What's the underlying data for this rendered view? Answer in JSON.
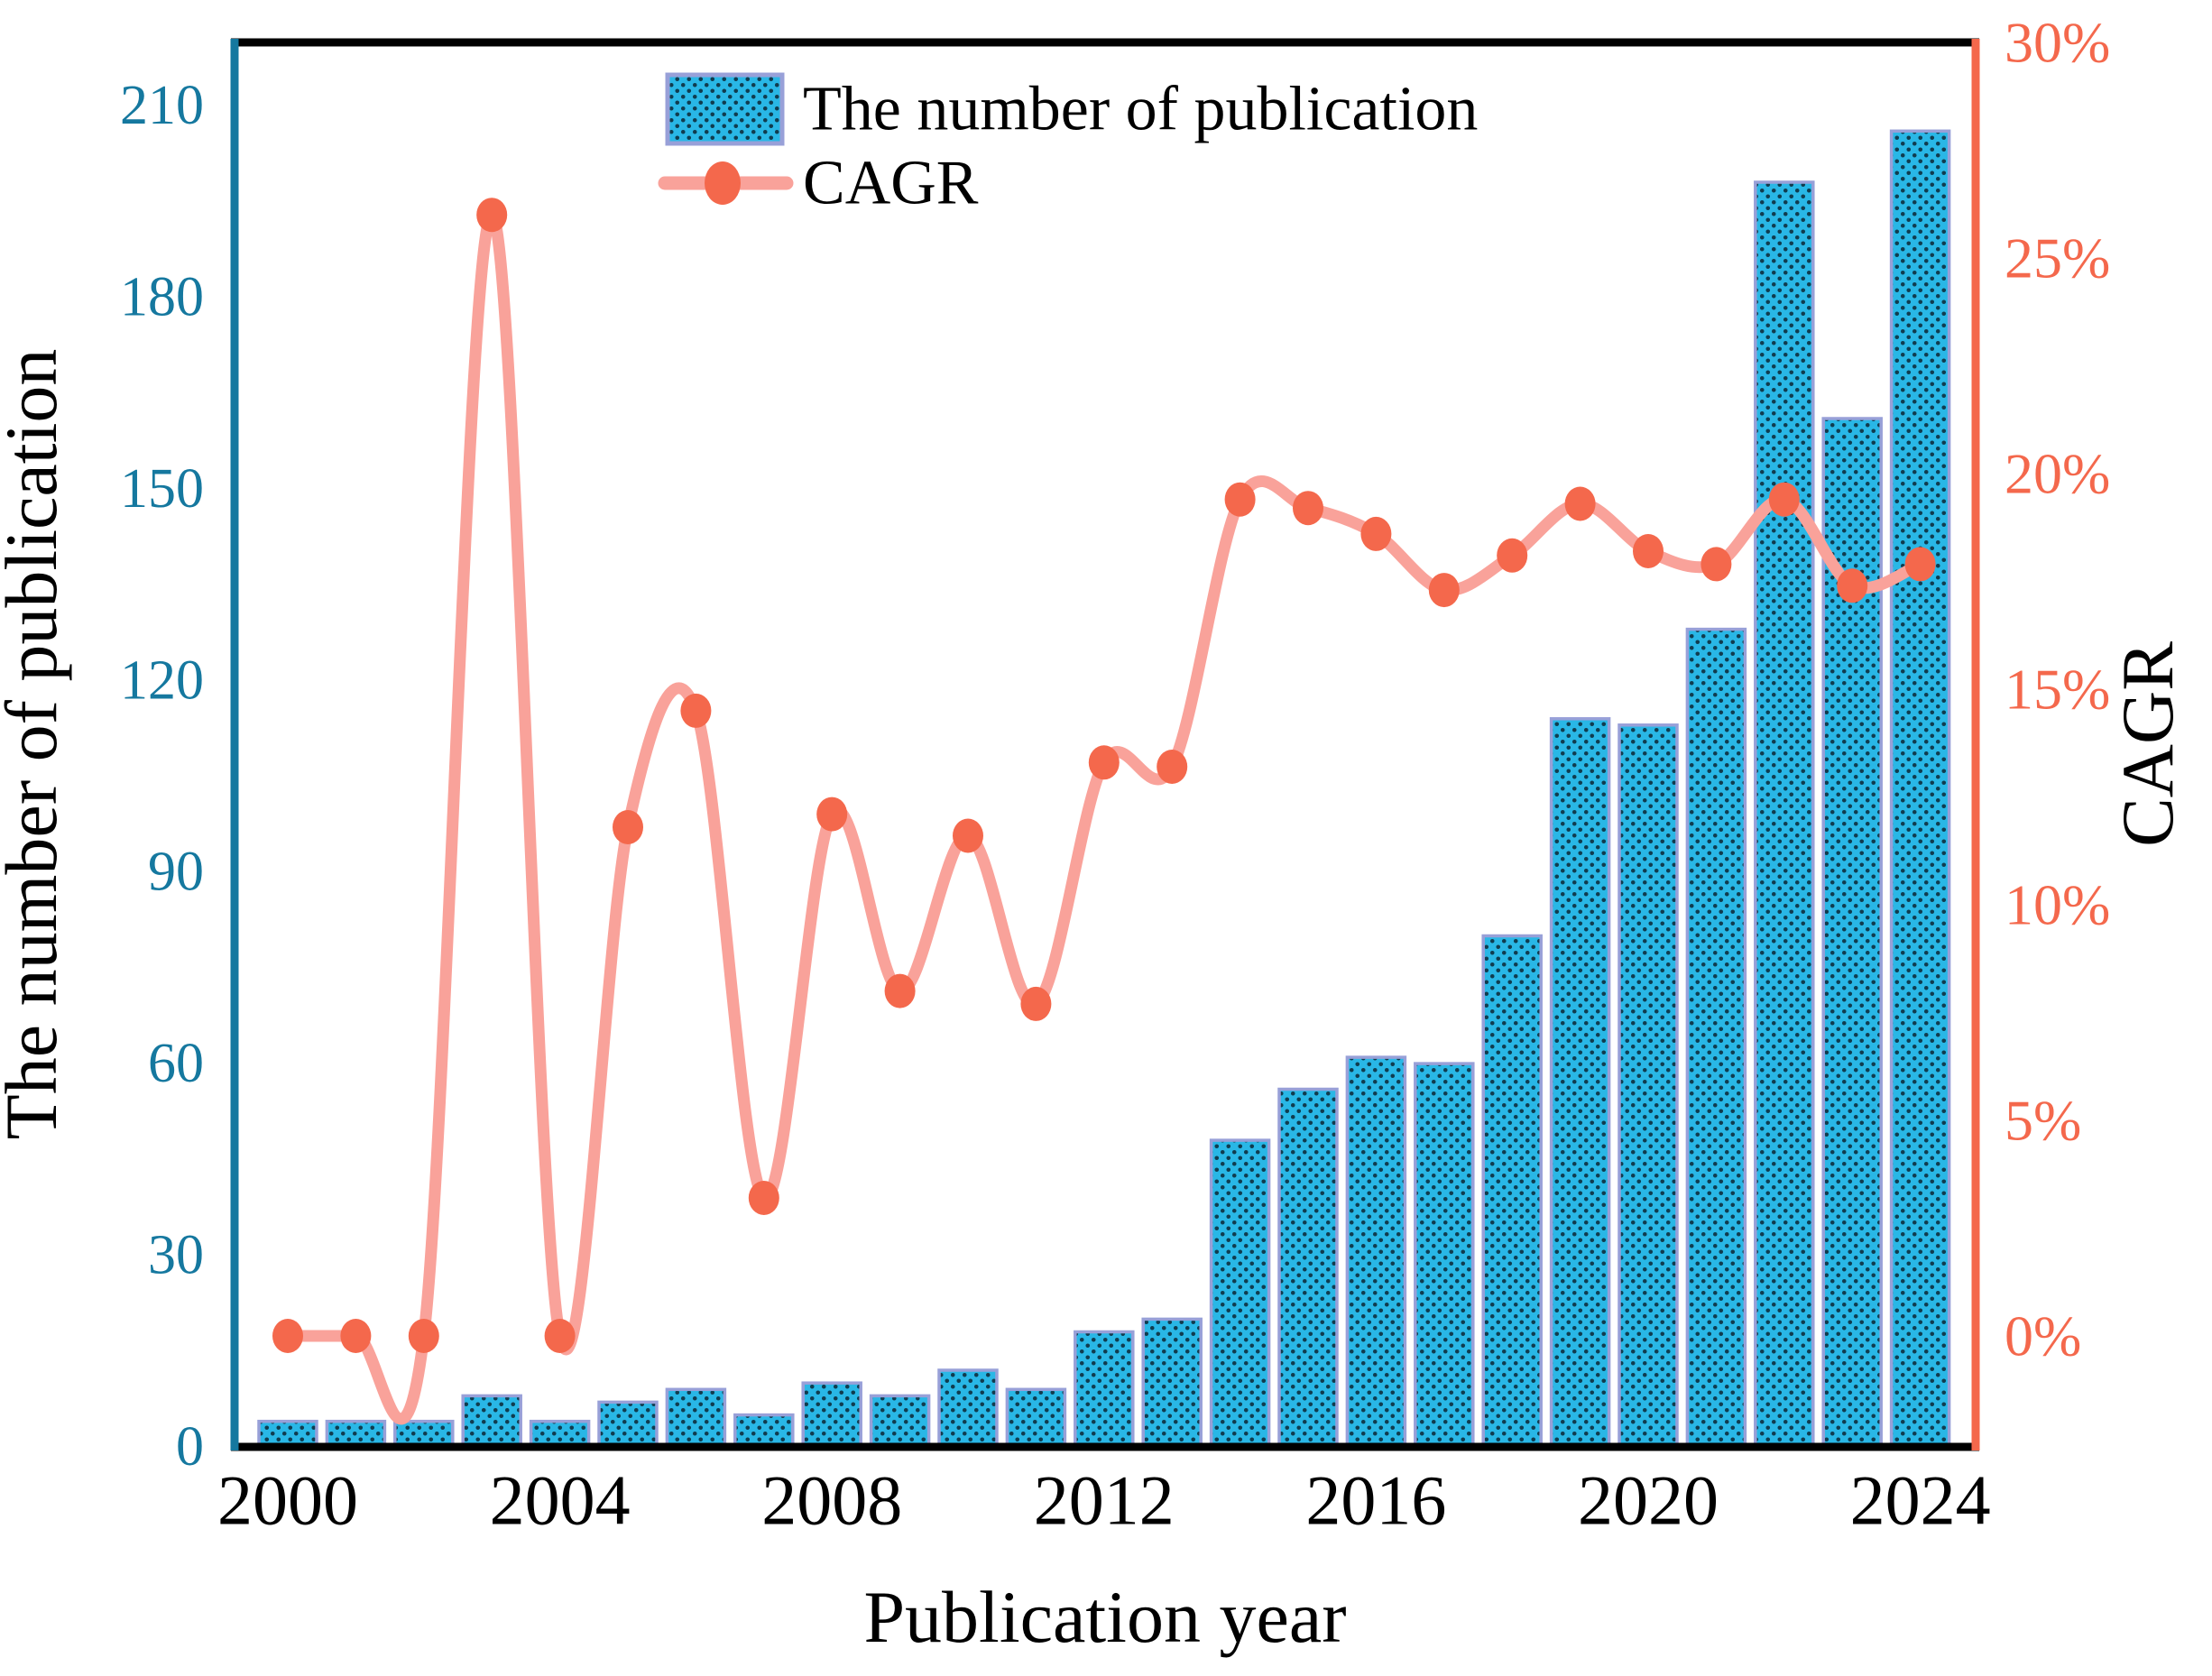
{
  "figure": {
    "xlabel": "Publication year",
    "ylabel_left": "The number of publication",
    "ylabel_right": "CAGR"
  },
  "legend": {
    "items": [
      {
        "label": "The number of publication",
        "swatch": "dotted-bar-swatch"
      },
      {
        "label": "CAGR",
        "swatch": "line-marker-swatch"
      }
    ]
  },
  "chart_data": {
    "type": "bar+line",
    "x": [
      2000,
      2001,
      2002,
      2003,
      2004,
      2005,
      2006,
      2007,
      2008,
      2009,
      2010,
      2011,
      2012,
      2013,
      2014,
      2015,
      2016,
      2017,
      2018,
      2019,
      2020,
      2021,
      2022,
      2023,
      2024
    ],
    "series": [
      {
        "name": "The number of publication",
        "type": "bar",
        "axis": "left",
        "values": [
          4,
          4,
          4,
          8,
          4,
          7,
          9,
          5,
          10,
          8,
          12,
          9,
          18,
          20,
          48,
          56,
          61,
          60,
          80,
          114,
          113,
          128,
          198,
          161,
          206
        ]
      },
      {
        "name": "CAGR",
        "type": "line",
        "axis": "right",
        "values_percent": [
          0.0,
          0.0,
          0.0,
          26.0,
          0.0,
          11.8,
          14.5,
          3.2,
          12.1,
          8.0,
          11.6,
          7.7,
          13.3,
          13.2,
          19.4,
          19.2,
          18.6,
          17.3,
          18.1,
          19.3,
          18.2,
          17.9,
          19.4,
          17.4,
          17.9
        ]
      }
    ],
    "left_axis": {
      "label": "The number of publication",
      "ticks": [
        0,
        30,
        60,
        90,
        120,
        150,
        180,
        210
      ],
      "range": [
        0,
        220
      ],
      "color": "#15789f"
    },
    "right_axis": {
      "label": "CAGR",
      "ticks": [
        "0%",
        "5%",
        "10%",
        "15%",
        "20%",
        "25%",
        "30%"
      ],
      "ticks_percent": [
        0,
        5,
        10,
        15,
        20,
        25,
        30
      ],
      "range_percent": [
        -2.6,
        30
      ],
      "color": "#f4684c"
    },
    "x_axis": {
      "label": "Publication year",
      "ticks": [
        2000,
        2004,
        2008,
        2012,
        2016,
        2020,
        2024
      ]
    },
    "grid": false,
    "legend_position": "upper center-left"
  },
  "colors": {
    "bar_fill": "#29b7e6",
    "bar_dot": "#0d2b3a",
    "bar_border": "#98a0d8",
    "line": "#f9a29a",
    "marker": "#f4684c",
    "left_axis": "#15789f",
    "right_axis": "#f4684c",
    "frame": "#000000",
    "background": "#ffffff"
  }
}
